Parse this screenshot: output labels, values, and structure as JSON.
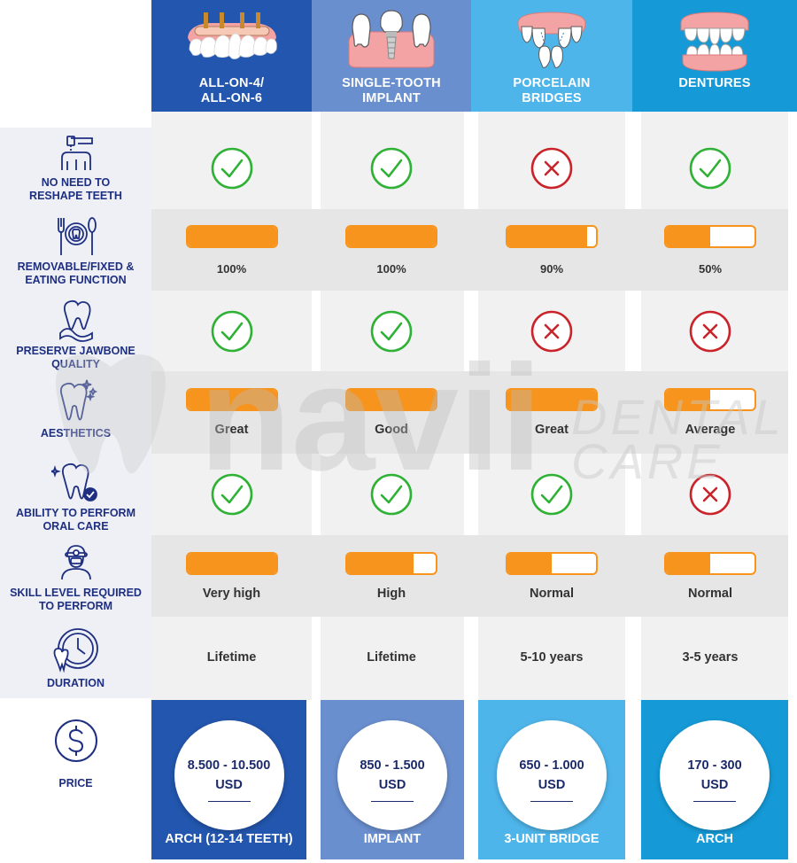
{
  "columns": [
    {
      "title": "ALL-ON-4/\nALL-ON-6",
      "color": "#2356ae"
    },
    {
      "title": "SINGLE-TOOTH\nIMPLANT",
      "color": "#6a8fcf"
    },
    {
      "title": "PORCELAIN\nBRIDGES",
      "color": "#4eb5ea"
    },
    {
      "title": "DENTURES",
      "color": "#159ad7"
    }
  ],
  "rows": [
    {
      "label": "NO NEED TO\nRESHAPE TEETH",
      "icon": "drill-tooth-icon"
    },
    {
      "label": "REMOVABLE/FIXED &\nEATING FUNCTION",
      "icon": "fork-plate-spoon-icon"
    },
    {
      "label": "PRESERVE JAWBONE\nQUALITY",
      "icon": "tooth-jawbone-icon"
    },
    {
      "label": "AESTHETICS",
      "icon": "sparkling-tooth-icon"
    },
    {
      "label": "ABILITY TO PERFORM\nORAL CARE",
      "icon": "tooth-check-icon"
    },
    {
      "label": "SKILL LEVEL REQUIRED\nTO PERFORM",
      "icon": "dentist-icon"
    },
    {
      "label": "DURATION",
      "icon": "clock-tooth-icon"
    },
    {
      "label": "PRICE",
      "icon": "dollar-icon"
    }
  ],
  "reshape": [
    "yes",
    "yes",
    "no",
    "yes"
  ],
  "eating": [
    {
      "fill": 1.0,
      "text": "100%"
    },
    {
      "fill": 1.0,
      "text": "100%"
    },
    {
      "fill": 0.9,
      "text": "90%"
    },
    {
      "fill": 0.5,
      "text": "50%"
    }
  ],
  "jawbone": [
    "yes",
    "yes",
    "no",
    "no"
  ],
  "aesthetics": [
    {
      "fill": 1.0,
      "text": "Great"
    },
    {
      "fill": 1.0,
      "text": "Good"
    },
    {
      "fill": 1.0,
      "text": "Great"
    },
    {
      "fill": 0.5,
      "text": "Average"
    }
  ],
  "oralcare": [
    "yes",
    "yes",
    "yes",
    "no"
  ],
  "skill": [
    {
      "fill": 1.0,
      "text": "Very high"
    },
    {
      "fill": 0.75,
      "text": "High"
    },
    {
      "fill": 0.5,
      "text": "Normal"
    },
    {
      "fill": 0.5,
      "text": "Normal"
    }
  ],
  "duration": [
    "Lifetime",
    "Lifetime",
    "5-10 years",
    "3-5 years"
  ],
  "price": [
    {
      "amount": "8.500 - 10.500",
      "currency": "USD",
      "unit": "ARCH (12-14 TEETH)"
    },
    {
      "amount": "850 - 1.500",
      "currency": "USD",
      "unit": "IMPLANT"
    },
    {
      "amount": "650 - 1.000",
      "currency": "USD",
      "unit": "3-UNIT BRIDGE"
    },
    {
      "amount": "170 - 300",
      "currency": "USD",
      "unit": "ARCH"
    }
  ],
  "watermark": {
    "brand": "navii",
    "sub1": "DENTAL",
    "sub2": "CARE"
  },
  "colors": {
    "orange": "#f7941d",
    "check": "#2eb135",
    "cross": "#c9242b",
    "navy": "#1e2f82"
  }
}
